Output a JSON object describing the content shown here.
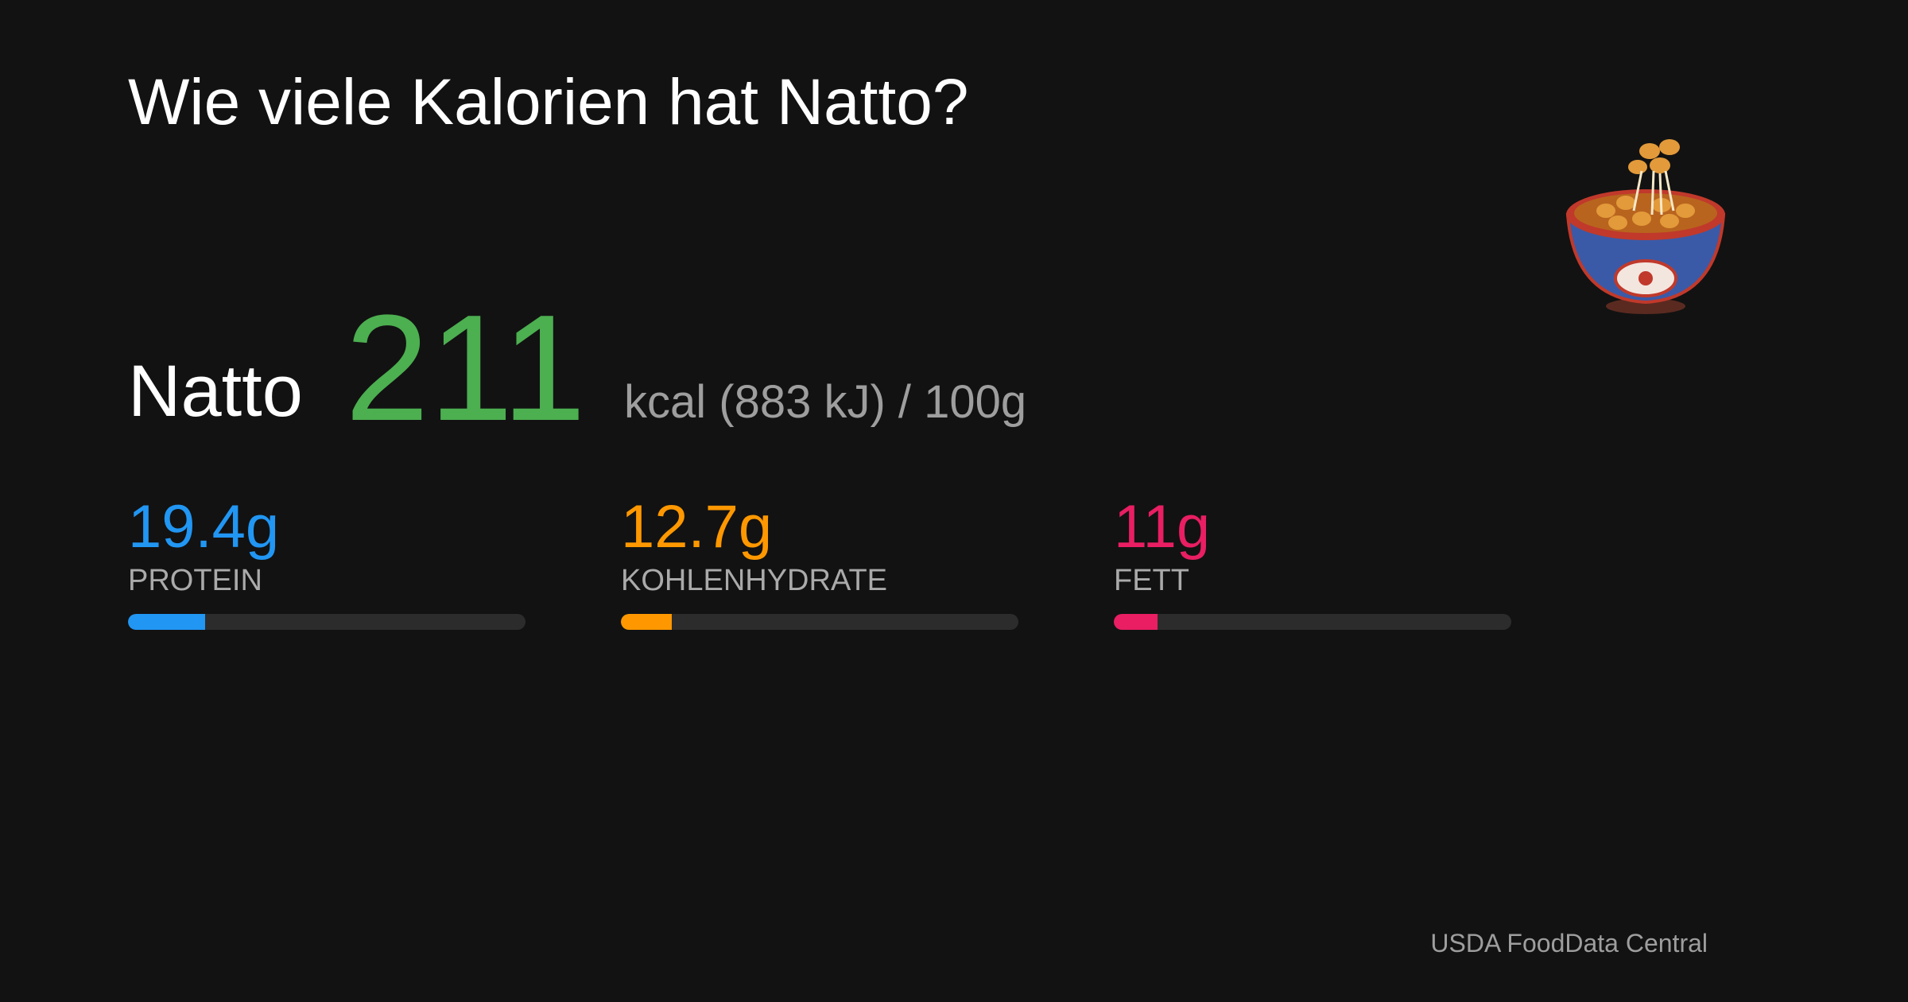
{
  "title": "Wie viele Kalorien hat Natto?",
  "food": "Natto",
  "calories": 211,
  "unit_text": "kcal (883 kJ) / 100g",
  "bar_max": 100,
  "macros": [
    {
      "name": "PROTEIN",
      "value": 19.4,
      "label": "19.4g",
      "color": "#2196f3"
    },
    {
      "name": "KOHLENHYDRATE",
      "value": 12.7,
      "label": "12.7g",
      "color": "#ff9800"
    },
    {
      "name": "FETT",
      "value": 11,
      "label": "11g",
      "color": "#e91e63"
    }
  ],
  "source": "USDA FoodData Central"
}
